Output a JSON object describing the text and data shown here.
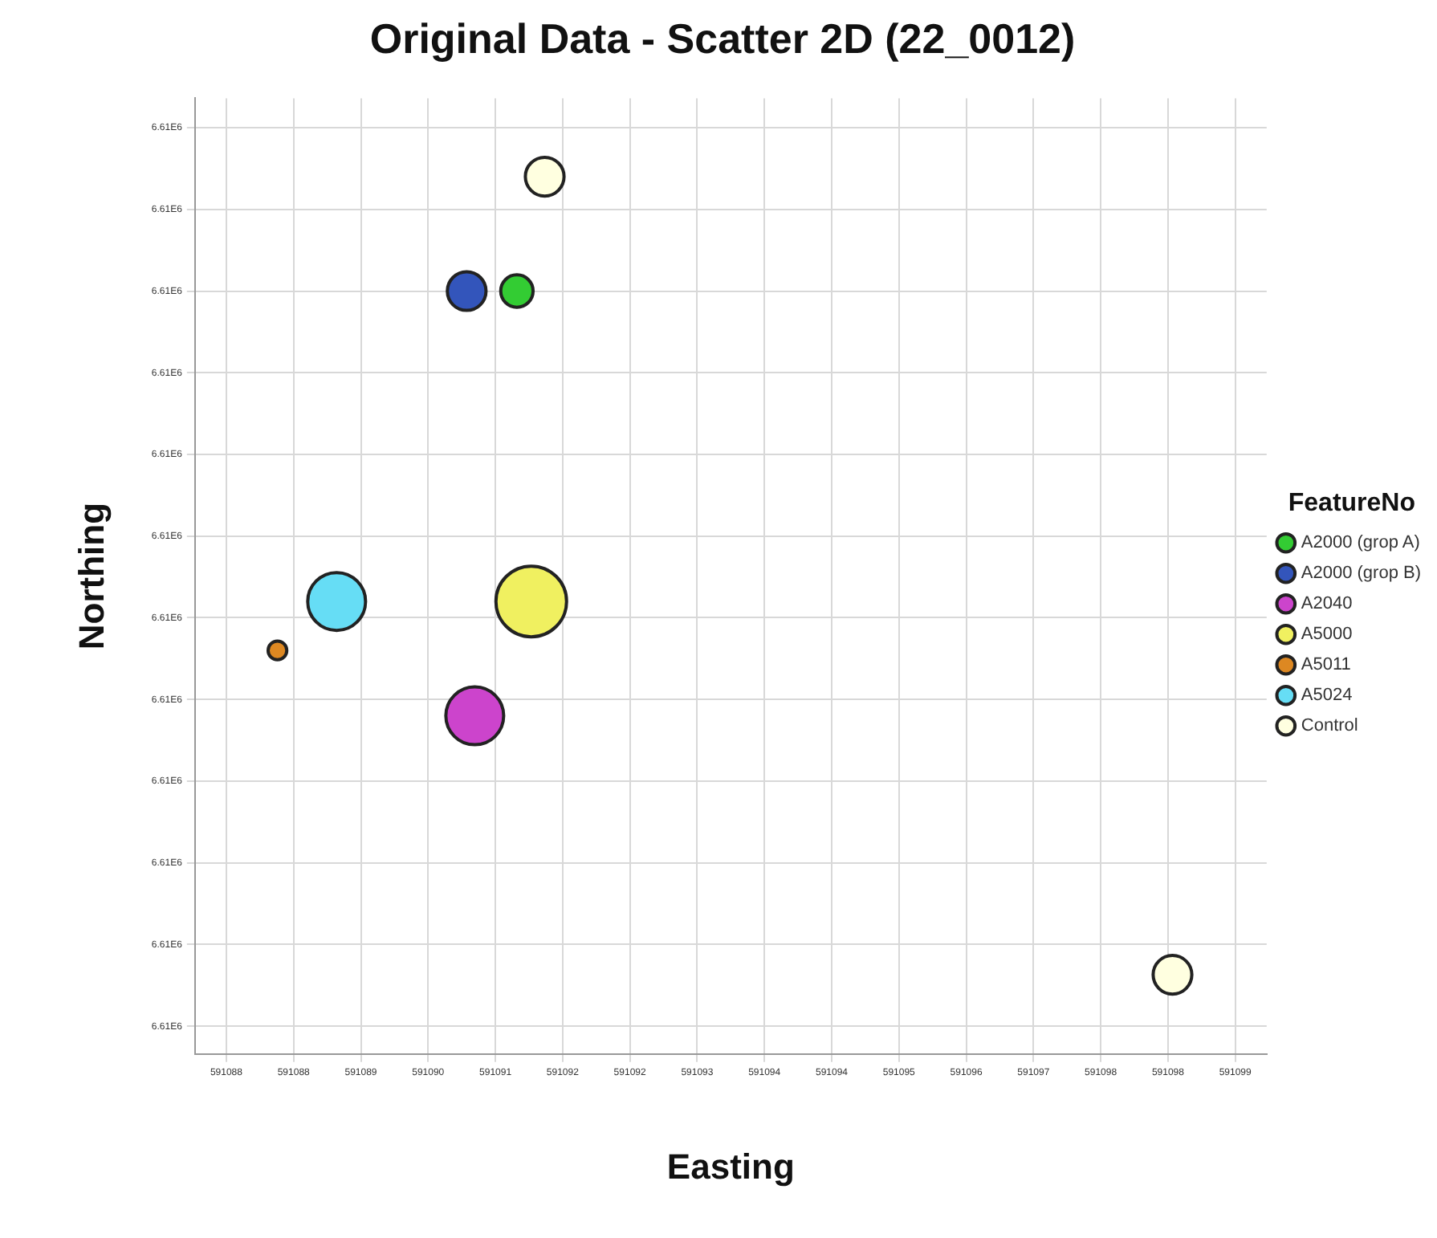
{
  "chart_data": {
    "type": "bubble",
    "title": "Original Data - Scatter 2D (22_0012)",
    "xlabel": "Easting",
    "ylabel": "Northing",
    "legend_title": "FeatureNo",
    "series": [
      {
        "name": "A2000 (grop A)",
        "color": "#33cc33",
        "x": [
          591090.99
        ],
        "values": [
          6610009
        ],
        "sizes": [
          0.21
        ]
      },
      {
        "name": "A2000 (grop B)",
        "color": "#3355bb",
        "x": [
          591090.43
        ],
        "values": [
          6610009
        ],
        "sizes": [
          0.3
        ]
      },
      {
        "name": "A2040",
        "color": "#cc44cc",
        "x": [
          591090.52
        ],
        "values": [
          6610003.8
        ],
        "sizes": [
          0.67
        ]
      },
      {
        "name": "A5000",
        "color": "#f0f060",
        "x": [
          591091.15
        ],
        "values": [
          6610005.2
        ],
        "sizes": [
          1
        ]
      },
      {
        "name": "A5011",
        "color": "#dd8822",
        "x": [
          591088.32
        ],
        "values": [
          6610004.6
        ],
        "sizes": [
          0.07
        ]
      },
      {
        "name": "A5024",
        "color": "#66ddf5",
        "x": [
          591088.98
        ],
        "values": [
          6610005.2
        ],
        "sizes": [
          0.67
        ]
      },
      {
        "name": "Control",
        "color": "#ffffe0",
        "x": [
          591091.3,
          591098.3
        ],
        "values": [
          6610010.4,
          6610000.63
        ],
        "sizes": [
          0.3,
          0.3
        ]
      }
    ],
    "xlim": [
      591087.4,
      591099.35
    ],
    "xticks": [
      {
        "value": 591087.75,
        "label": "591088"
      },
      {
        "value": 591088.5,
        "label": "591088"
      },
      {
        "value": 591089.25,
        "label": "591089"
      },
      {
        "value": 591090,
        "label": "591090"
      },
      {
        "value": 591090.75,
        "label": "591091"
      },
      {
        "value": 591091.5,
        "label": "591092"
      },
      {
        "value": 591092.25,
        "label": "591092"
      },
      {
        "value": 591093,
        "label": "591093"
      },
      {
        "value": 591093.75,
        "label": "591094"
      },
      {
        "value": 591094.5,
        "label": "591094"
      },
      {
        "value": 591095.25,
        "label": "591095"
      },
      {
        "value": 591096,
        "label": "591096"
      },
      {
        "value": 591096.75,
        "label": "591097"
      },
      {
        "value": 591097.5,
        "label": "591098"
      },
      {
        "value": 591098.25,
        "label": "591098"
      },
      {
        "value": 591099,
        "label": "591099"
      }
    ],
    "ylim": [
      6609999.66,
      6610011.36
    ],
    "yticks": [
      {
        "value": 6610000,
        "label": "6.61E6"
      },
      {
        "value": 6610001,
        "label": "6.61E6"
      },
      {
        "value": 6610002,
        "label": "6.61E6"
      },
      {
        "value": 6610003,
        "label": "6.61E6"
      },
      {
        "value": 6610004,
        "label": "6.61E6"
      },
      {
        "value": 6610005,
        "label": "6.61E6"
      },
      {
        "value": 6610006,
        "label": "6.61E6"
      },
      {
        "value": 6610007,
        "label": "6.61E6"
      },
      {
        "value": 6610008,
        "label": "6.61E6"
      },
      {
        "value": 6610009,
        "label": "6.61E6"
      },
      {
        "value": 6610010,
        "label": "6.61E6"
      },
      {
        "value": 6610011,
        "label": "6.61E6"
      }
    ],
    "grid": true,
    "legend": "right"
  }
}
